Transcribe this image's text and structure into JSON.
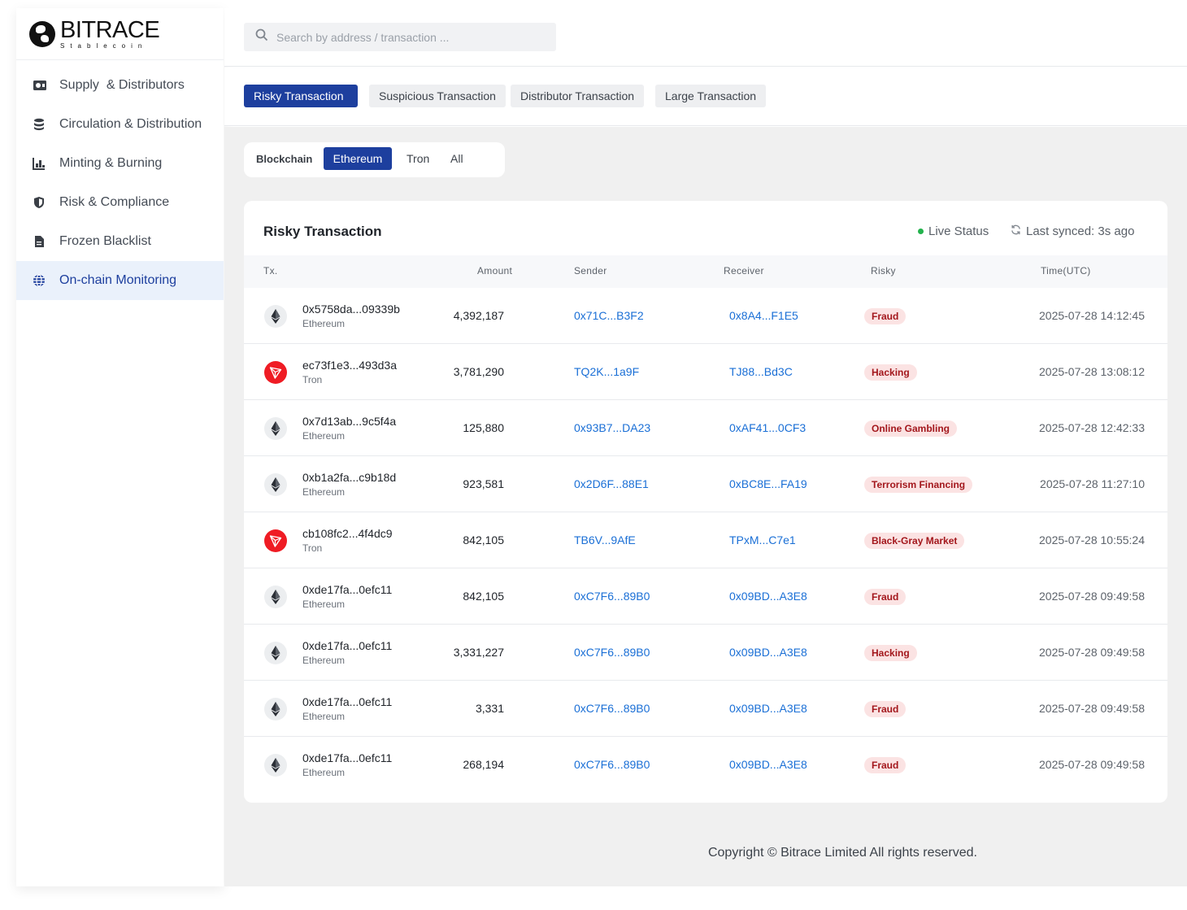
{
  "brand": {
    "name": "BITRACE",
    "sub": "Stablecoin"
  },
  "sidebar": {
    "items": [
      {
        "label": "Supply  & Distributors",
        "icon": "supply-icon"
      },
      {
        "label": "Circulation & Distribution",
        "icon": "database-icon"
      },
      {
        "label": "Minting & Burning",
        "icon": "bar-chart-icon"
      },
      {
        "label": "Risk & Compliance",
        "icon": "shield-icon"
      },
      {
        "label": "Frozen Blacklist",
        "icon": "document-icon"
      },
      {
        "label": "On-chain Monitoring",
        "icon": "globe-icon",
        "active": true
      }
    ]
  },
  "search": {
    "placeholder": "Search by address / transaction ..."
  },
  "tabs": [
    {
      "label": "Risky Transaction",
      "active": true
    },
    {
      "label": "Suspicious Transaction"
    },
    {
      "label": "Distributor Transaction"
    },
    {
      "label": "Large Transaction"
    }
  ],
  "filter": {
    "label": "Blockchain",
    "options": [
      {
        "label": "Ethereum",
        "active": true
      },
      {
        "label": "Tron"
      },
      {
        "label": "All"
      }
    ]
  },
  "card": {
    "title": "Risky Transaction",
    "live": "Live Status",
    "synced": "Last synced: 3s ago"
  },
  "table": {
    "headers": {
      "tx": "Tx.",
      "amount": "Amount",
      "sender": "Sender",
      "receiver": "Receiver",
      "risky": "Risky",
      "time": "Time(UTC)"
    },
    "rows": [
      {
        "hash": "0x5758da...09339b",
        "chain": "Ethereum",
        "amount": "4,392,187",
        "sender": "0x71C...B3F2",
        "receiver": "0x8A4...F1E5",
        "risk": "Fraud",
        "time": "2025-07-28 14:12:45"
      },
      {
        "hash": "ec73f1e3...493d3a",
        "chain": "Tron",
        "amount": "3,781,290",
        "sender": "TQ2K...1a9F",
        "receiver": "TJ88...Bd3C",
        "risk": "Hacking",
        "time": "2025-07-28 13:08:12"
      },
      {
        "hash": "0x7d13ab...9c5f4a",
        "chain": "Ethereum",
        "amount": "125,880",
        "sender": "0x93B7...DA23",
        "receiver": "0xAF41...0CF3",
        "risk": "Online Gambling",
        "time": "2025-07-28 12:42:33"
      },
      {
        "hash": "0xb1a2fa...c9b18d",
        "chain": "Ethereum",
        "amount": "923,581",
        "sender": "0x2D6F...88E1",
        "receiver": "0xBC8E...FA19",
        "risk": "Terrorism Financing",
        "time": "2025-07-28 11:27:10"
      },
      {
        "hash": "cb108fc2...4f4dc9",
        "chain": "Tron",
        "amount": "842,105",
        "sender": "TB6V...9AfE",
        "receiver": "TPxM...C7e1",
        "risk": "Black-Gray Market",
        "time": "2025-07-28 10:55:24"
      },
      {
        "hash": "0xde17fa...0efc11",
        "chain": "Ethereum",
        "amount": "842,105",
        "sender": "0xC7F6...89B0",
        "receiver": "0x09BD...A3E8",
        "risk": "Fraud",
        "time": "2025-07-28 09:49:58"
      },
      {
        "hash": "0xde17fa...0efc11",
        "chain": "Ethereum",
        "amount": "3,331,227",
        "sender": "0xC7F6...89B0",
        "receiver": "0x09BD...A3E8",
        "risk": "Hacking",
        "time": "2025-07-28 09:49:58"
      },
      {
        "hash": "0xde17fa...0efc11",
        "chain": "Ethereum",
        "amount": "3,331",
        "sender": "0xC7F6...89B0",
        "receiver": "0x09BD...A3E8",
        "risk": "Fraud",
        "time": "2025-07-28 09:49:58"
      },
      {
        "hash": "0xde17fa...0efc11",
        "chain": "Ethereum",
        "amount": "268,194",
        "sender": "0xC7F6...89B0",
        "receiver": "0x09BD...A3E8",
        "risk": "Fraud",
        "time": "2025-07-28 09:49:58"
      }
    ]
  },
  "footer": {
    "text": "Copyright © Bitrace Limited All rights reserved."
  },
  "colors": {
    "accent": "#1d3f9e",
    "link": "#1a6fd6",
    "badge_bg": "#fbe3e3",
    "badge_text": "#a3171c",
    "live": "#22b24c",
    "tron": "#ef1c24"
  }
}
